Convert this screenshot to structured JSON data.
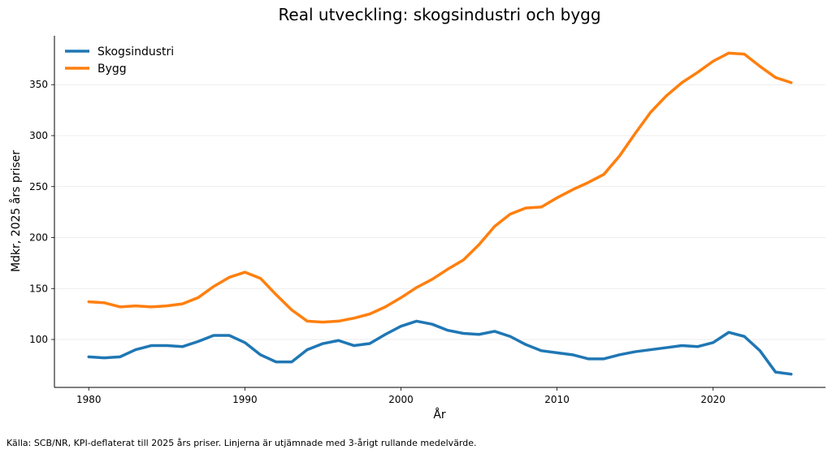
{
  "chart_data": {
    "type": "line",
    "title": "Real utveckling: skogsindustri och bygg",
    "xlabel": "År",
    "ylabel": "Mdkr, 2025 års priser",
    "source_note": "Källa: SCB/NR, KPI-deflaterat till 2025 års priser. Linjerna är utjämnade med 3-årigt rullande medelvärde.",
    "xlim": [
      1977.8,
      2027.2
    ],
    "ylim": [
      53,
      398
    ],
    "x_ticks": [
      1980,
      1990,
      2000,
      2010,
      2020
    ],
    "y_ticks": [
      100,
      150,
      200,
      250,
      300,
      350
    ],
    "grid": "horizontal",
    "legend_position": "top-left",
    "x": [
      1980,
      1981,
      1982,
      1983,
      1984,
      1985,
      1986,
      1987,
      1988,
      1989,
      1990,
      1991,
      1992,
      1993,
      1994,
      1995,
      1996,
      1997,
      1998,
      1999,
      2000,
      2001,
      2002,
      2003,
      2004,
      2005,
      2006,
      2007,
      2008,
      2009,
      2010,
      2011,
      2012,
      2013,
      2014,
      2015,
      2016,
      2017,
      2018,
      2019,
      2020,
      2021,
      2022,
      2023,
      2024,
      2025
    ],
    "series": [
      {
        "name": "Skogsindustri",
        "color": "#1f77b4",
        "values": [
          83,
          82,
          83,
          90,
          94,
          94,
          93,
          98,
          104,
          104,
          97,
          85,
          78,
          78,
          90,
          96,
          99,
          94,
          96,
          105,
          113,
          118,
          115,
          109,
          106,
          105,
          108,
          103,
          95,
          89,
          87,
          85,
          81,
          81,
          85,
          88,
          90,
          92,
          94,
          93,
          97,
          107,
          103,
          89,
          68,
          66
        ]
      },
      {
        "name": "Bygg",
        "color": "#ff7f0e",
        "values": [
          137,
          136,
          132,
          133,
          132,
          133,
          135,
          141,
          152,
          161,
          166,
          160,
          144,
          129,
          118,
          117,
          118,
          121,
          125,
          132,
          141,
          151,
          159,
          169,
          178,
          193,
          211,
          223,
          229,
          230,
          239,
          247,
          254,
          262,
          280,
          302,
          323,
          339,
          352,
          362,
          373,
          381,
          380,
          368,
          357,
          352
        ]
      }
    ]
  }
}
